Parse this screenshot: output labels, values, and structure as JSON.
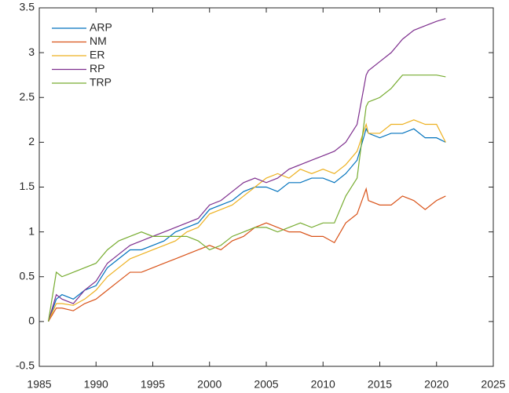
{
  "chart_data": {
    "type": "line",
    "x": [
      1985.8,
      1986.5,
      1987,
      1988,
      1989,
      1990,
      1991,
      1992,
      1993,
      1994,
      1995,
      1996,
      1997,
      1998,
      1999,
      2000,
      2001,
      2002,
      2003,
      2004,
      2005,
      2006,
      2007,
      2008,
      2009,
      2010,
      2011,
      2012,
      2013,
      2013.8,
      2014,
      2015,
      2016,
      2017,
      2018,
      2019,
      2020,
      2020.8
    ],
    "series": [
      {
        "name": "ARP",
        "color": "#0072BD",
        "values": [
          0,
          0.25,
          0.3,
          0.25,
          0.35,
          0.4,
          0.6,
          0.7,
          0.8,
          0.8,
          0.85,
          0.9,
          1.0,
          1.05,
          1.1,
          1.25,
          1.3,
          1.35,
          1.45,
          1.5,
          1.5,
          1.45,
          1.55,
          1.55,
          1.6,
          1.6,
          1.55,
          1.65,
          1.8,
          2.15,
          2.1,
          2.05,
          2.1,
          2.1,
          2.15,
          2.05,
          2.05,
          2.0
        ]
      },
      {
        "name": "NM",
        "color": "#D95319",
        "values": [
          0,
          0.15,
          0.15,
          0.12,
          0.2,
          0.25,
          0.35,
          0.45,
          0.55,
          0.55,
          0.6,
          0.65,
          0.7,
          0.75,
          0.8,
          0.85,
          0.8,
          0.9,
          0.95,
          1.05,
          1.1,
          1.05,
          1.0,
          1.0,
          0.95,
          0.95,
          0.88,
          1.1,
          1.2,
          1.48,
          1.35,
          1.3,
          1.3,
          1.4,
          1.35,
          1.25,
          1.35,
          1.4
        ]
      },
      {
        "name": "ER",
        "color": "#EDB120",
        "values": [
          0,
          0.2,
          0.2,
          0.18,
          0.25,
          0.35,
          0.5,
          0.6,
          0.7,
          0.75,
          0.8,
          0.85,
          0.9,
          1.0,
          1.05,
          1.2,
          1.25,
          1.3,
          1.4,
          1.5,
          1.6,
          1.65,
          1.6,
          1.7,
          1.65,
          1.7,
          1.65,
          1.75,
          1.9,
          2.2,
          2.1,
          2.1,
          2.2,
          2.2,
          2.25,
          2.2,
          2.2,
          2.0
        ]
      },
      {
        "name": "RP",
        "color": "#7E2F8E",
        "values": [
          0,
          0.3,
          0.25,
          0.2,
          0.35,
          0.45,
          0.65,
          0.75,
          0.85,
          0.9,
          0.95,
          1.0,
          1.05,
          1.1,
          1.15,
          1.3,
          1.35,
          1.45,
          1.55,
          1.6,
          1.55,
          1.6,
          1.7,
          1.75,
          1.8,
          1.85,
          1.9,
          2.0,
          2.2,
          2.75,
          2.8,
          2.9,
          3.0,
          3.15,
          3.25,
          3.3,
          3.35,
          3.38
        ]
      },
      {
        "name": "TRP",
        "color": "#77AC30",
        "values": [
          0,
          0.55,
          0.5,
          0.55,
          0.6,
          0.65,
          0.8,
          0.9,
          0.95,
          1.0,
          0.95,
          0.95,
          0.95,
          0.95,
          0.9,
          0.8,
          0.85,
          0.95,
          1.0,
          1.05,
          1.05,
          1.0,
          1.05,
          1.1,
          1.05,
          1.1,
          1.1,
          1.4,
          1.6,
          2.4,
          2.45,
          2.5,
          2.6,
          2.75,
          2.75,
          2.75,
          2.75,
          2.73
        ]
      }
    ],
    "xlim": [
      1985,
      2025
    ],
    "xticks": [
      1985,
      1990,
      1995,
      2000,
      2005,
      2010,
      2015,
      2020,
      2025
    ],
    "ylim": [
      -0.5,
      3.5
    ],
    "yticks": [
      -0.5,
      0,
      0.5,
      1,
      1.5,
      2,
      2.5,
      3,
      3.5
    ],
    "legend": "upper left"
  }
}
